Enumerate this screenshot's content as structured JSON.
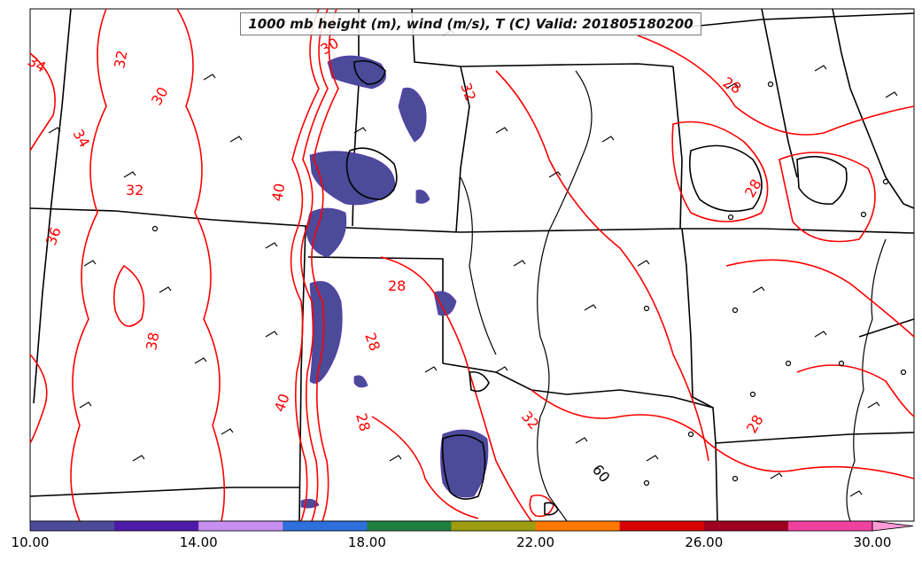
{
  "title": "1000 mb height (m), wind (m/s), T (C) Valid: 201805180200",
  "colorbar": {
    "tick_labels": [
      "10.00",
      "14.00",
      "18.00",
      "22.00",
      "26.00",
      "30.00"
    ],
    "colors": [
      "#4b4b9a",
      "#4e1aa8",
      "#c790f0",
      "#2f6fdc",
      "#1f7f3f",
      "#9c9c10",
      "#ff7800",
      "#d80000",
      "#a00020",
      "#f040a0",
      "#ff9ad8"
    ],
    "range": [
      10,
      30
    ]
  },
  "contour_labels": {
    "temperature": [
      "34",
      "32",
      "30",
      "34",
      "32",
      "36",
      "38",
      "40",
      "30",
      "32",
      "28",
      "28",
      "40",
      "32",
      "28",
      "28",
      "28",
      "28"
    ],
    "height": [
      "60"
    ]
  },
  "colors": {
    "temperature_contour": "#ff0000",
    "height_contour": "#000000",
    "border": "#000000",
    "shading": "#4b4b9a"
  }
}
